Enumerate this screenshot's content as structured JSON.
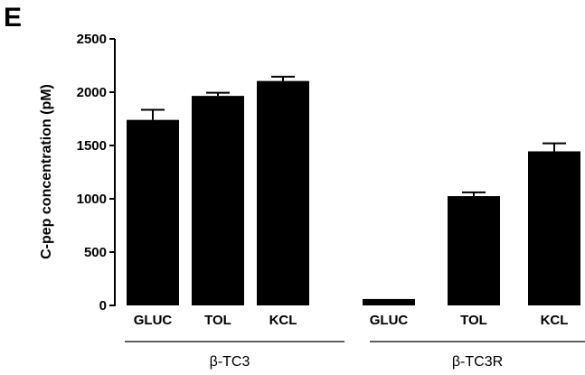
{
  "panel_label": "E",
  "chart_data": {
    "type": "bar",
    "categories": [
      "GLUC",
      "TOL",
      "KCL",
      "GLUC",
      "TOL",
      "KCL"
    ],
    "groups": [
      {
        "label": "β-TC3",
        "categories": [
          "GLUC",
          "TOL",
          "KCL"
        ]
      },
      {
        "label": "β-TC3R",
        "categories": [
          "GLUC",
          "TOL",
          "KCL"
        ]
      }
    ],
    "values": [
      1740,
      1965,
      2105,
      60,
      1025,
      1445
    ],
    "errors": [
      95,
      30,
      40,
      0,
      35,
      75
    ],
    "ylabel": "C-pep concentration (pM)",
    "xlabel": "",
    "ylim": [
      0,
      2500
    ],
    "yticks": [
      0,
      500,
      1000,
      1500,
      2000,
      2500
    ],
    "yticklabels": [
      "0",
      "500",
      "1000",
      "1500",
      "2000",
      "2500"
    ],
    "bar_color": "#000000",
    "grid": false
  }
}
